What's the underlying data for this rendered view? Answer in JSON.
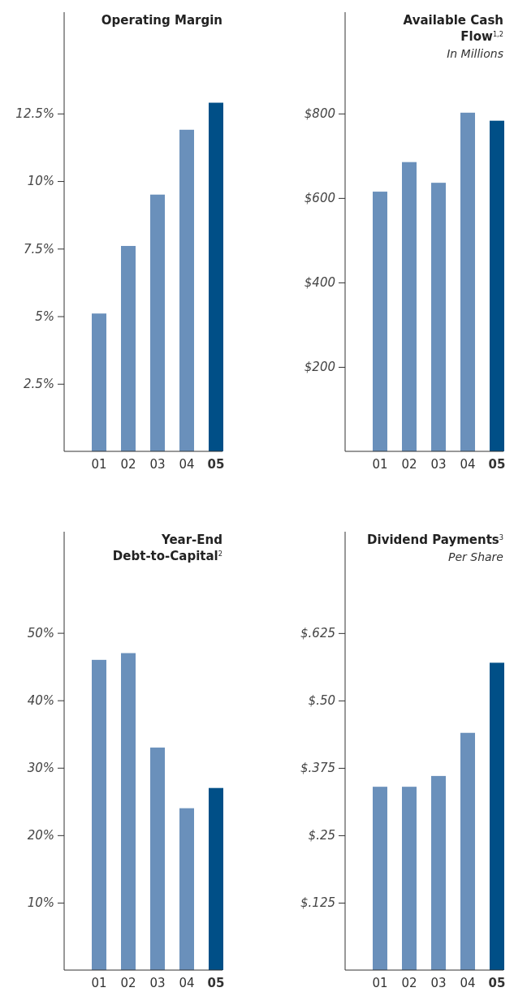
{
  "chart_data": [
    {
      "type": "bar",
      "title": "Operating Margin",
      "categories": [
        "01",
        "02",
        "03",
        "04",
        "05"
      ],
      "values": [
        5.1,
        7.6,
        9.5,
        11.9,
        12.9
      ],
      "colors": [
        "#6a90bb",
        "#6a90bb",
        "#6a90bb",
        "#6a90bb",
        "#004f87"
      ],
      "ylim": [
        0,
        16.25
      ],
      "yticks": [
        {
          "value": 2.5,
          "label": "2.5%"
        },
        {
          "value": 5,
          "label": "5%"
        },
        {
          "value": 7.5,
          "label": "7.5%"
        },
        {
          "value": 10,
          "label": "10%"
        },
        {
          "value": 12.5,
          "label": "12.5%"
        }
      ],
      "grid": false
    },
    {
      "type": "bar",
      "title": "Available Cash Flow$^{1,2}$",
      "subtitle": "In Millions",
      "categories": [
        "01",
        "02",
        "03",
        "04",
        "05"
      ],
      "values": [
        615,
        685,
        636,
        802,
        783
      ],
      "colors": [
        "#6a90bb",
        "#6a90bb",
        "#6a90bb",
        "#6a90bb",
        "#004f87"
      ],
      "ylim": [
        0,
        1040
      ],
      "yticks": [
        {
          "value": 200,
          "label": "$200"
        },
        {
          "value": 400,
          "label": "$400"
        },
        {
          "value": 600,
          "label": "$600"
        },
        {
          "value": 800,
          "label": "$800"
        }
      ],
      "grid": false
    },
    {
      "type": "bar",
      "title": "Year-End Debt-to-Capital$^{2}$",
      "categories": [
        "01",
        "02",
        "03",
        "04",
        "05"
      ],
      "values": [
        46,
        47,
        33,
        24,
        27
      ],
      "colors": [
        "#6a90bb",
        "#6a90bb",
        "#6a90bb",
        "#6a90bb",
        "#004f87"
      ],
      "ylim": [
        0,
        65
      ],
      "yticks": [
        {
          "value": 10,
          "label": "10%"
        },
        {
          "value": 20,
          "label": "20%"
        },
        {
          "value": 30,
          "label": "30%"
        },
        {
          "value": 40,
          "label": "40%"
        },
        {
          "value": 50,
          "label": "50%"
        }
      ],
      "grid": false
    },
    {
      "type": "bar",
      "title": "Dividend Payments$^{3}$",
      "subtitle": "Per Share",
      "categories": [
        "01",
        "02",
        "03",
        "04",
        "05"
      ],
      "values": [
        0.34,
        0.34,
        0.36,
        0.44,
        0.57
      ],
      "colors": [
        "#6a90bb",
        "#6a90bb",
        "#6a90bb",
        "#6a90bb",
        "#004f87"
      ],
      "ylim": [
        0,
        0.813
      ],
      "yticks": [
        {
          "value": 0.125,
          "label": "$.125"
        },
        {
          "value": 0.25,
          "label": "$.25"
        },
        {
          "value": 0.375,
          "label": "$.375"
        },
        {
          "value": 0.5,
          "label": "$.50"
        },
        {
          "value": 0.625,
          "label": "$.625"
        }
      ],
      "grid": false
    }
  ]
}
